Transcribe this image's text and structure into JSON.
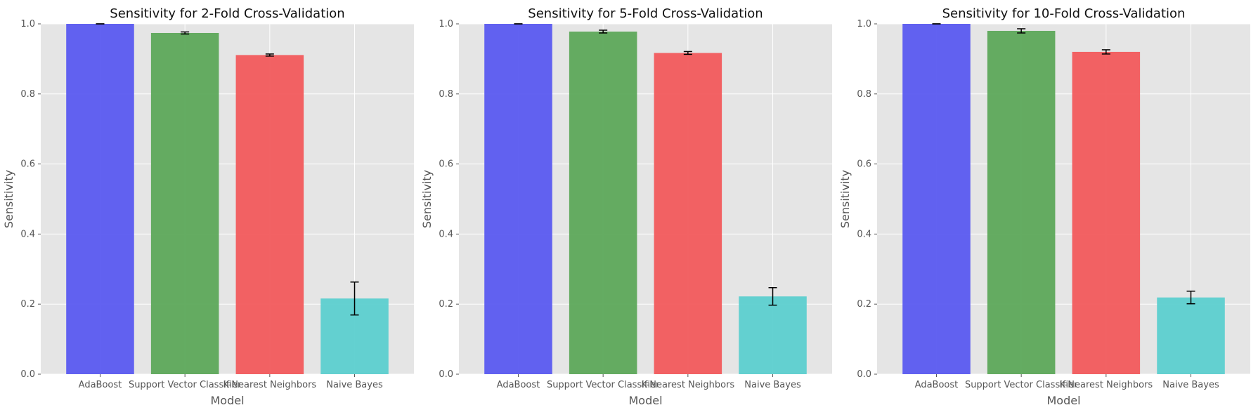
{
  "chart_data": [
    {
      "type": "bar",
      "title": "Sensitivity for 2-Fold Cross-Validation",
      "xlabel": "Model",
      "ylabel": "Sensitivity",
      "ylim": [
        0,
        1.0
      ],
      "yticks": [
        "0.0",
        "0.2",
        "0.4",
        "0.6",
        "0.8",
        "1.0"
      ],
      "categories": [
        "AdaBoost",
        "Support Vector Classifier",
        "K-Nearest Neighbors",
        "Naive Bayes"
      ],
      "values": [
        1.0,
        0.974,
        0.911,
        0.216
      ],
      "errors": [
        0.0,
        0.003,
        0.003,
        0.047
      ],
      "colors": [
        "#5a5af0",
        "#5da85a",
        "#f25a5c",
        "#5ccfcf"
      ],
      "grid": true
    },
    {
      "type": "bar",
      "title": "Sensitivity for 5-Fold Cross-Validation",
      "xlabel": "Model",
      "ylabel": "Sensitivity",
      "ylim": [
        0,
        1.0
      ],
      "yticks": [
        "0.0",
        "0.2",
        "0.4",
        "0.6",
        "0.8",
        "1.0"
      ],
      "categories": [
        "AdaBoost",
        "Support Vector Classifier",
        "K-Nearest Neighbors",
        "Naive Bayes"
      ],
      "values": [
        1.0,
        0.978,
        0.917,
        0.222
      ],
      "errors": [
        0.0,
        0.004,
        0.004,
        0.025
      ],
      "colors": [
        "#5a5af0",
        "#5da85a",
        "#f25a5c",
        "#5ccfcf"
      ],
      "grid": true
    },
    {
      "type": "bar",
      "title": "Sensitivity for 10-Fold Cross-Validation",
      "xlabel": "Model",
      "ylabel": "Sensitivity",
      "ylim": [
        0,
        1.0
      ],
      "yticks": [
        "0.0",
        "0.2",
        "0.4",
        "0.6",
        "0.8",
        "1.0"
      ],
      "categories": [
        "AdaBoost",
        "Support Vector Classifier",
        "K-Nearest Neighbors",
        "Naive Bayes"
      ],
      "values": [
        1.0,
        0.98,
        0.92,
        0.219
      ],
      "errors": [
        0.0,
        0.006,
        0.006,
        0.018
      ],
      "colors": [
        "#5a5af0",
        "#5da85a",
        "#f25a5c",
        "#5ccfcf"
      ],
      "grid": true
    }
  ]
}
